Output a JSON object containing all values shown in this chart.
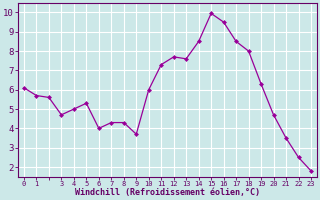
{
  "x": [
    0,
    1,
    2,
    3,
    4,
    5,
    6,
    7,
    8,
    9,
    10,
    11,
    12,
    13,
    14,
    15,
    16,
    17,
    18,
    19,
    20,
    21,
    22,
    23
  ],
  "y": [
    6.1,
    5.7,
    5.6,
    4.7,
    5.0,
    5.3,
    4.0,
    4.3,
    4.3,
    3.7,
    6.0,
    7.3,
    7.7,
    7.6,
    8.5,
    9.95,
    9.5,
    8.5,
    8.0,
    6.3,
    4.7,
    3.5,
    2.5,
    1.8
  ],
  "line_color": "#990099",
  "marker": "D",
  "marker_size": 2.0,
  "bg_color": "#cce8e8",
  "grid_color": "#ffffff",
  "xlabel": "Windchill (Refroidissement éolien,°C)",
  "ylabel_ticks": [
    2,
    3,
    4,
    5,
    6,
    7,
    8,
    9,
    10
  ],
  "xtick_labels": [
    "0",
    "1",
    "",
    "3",
    "4",
    "5",
    "6",
    "7",
    "8",
    "9",
    "10",
    "11",
    "12",
    "13",
    "14",
    "15",
    "16",
    "17",
    "18",
    "19",
    "20",
    "21",
    "22",
    "23"
  ],
  "xlim": [
    -0.5,
    23.5
  ],
  "ylim": [
    1.5,
    10.5
  ],
  "axis_label_color": "#660066",
  "tick_color": "#660066",
  "xlabel_fontsize": 6.0,
  "ytick_fontsize": 6.5,
  "xtick_fontsize": 5.0
}
